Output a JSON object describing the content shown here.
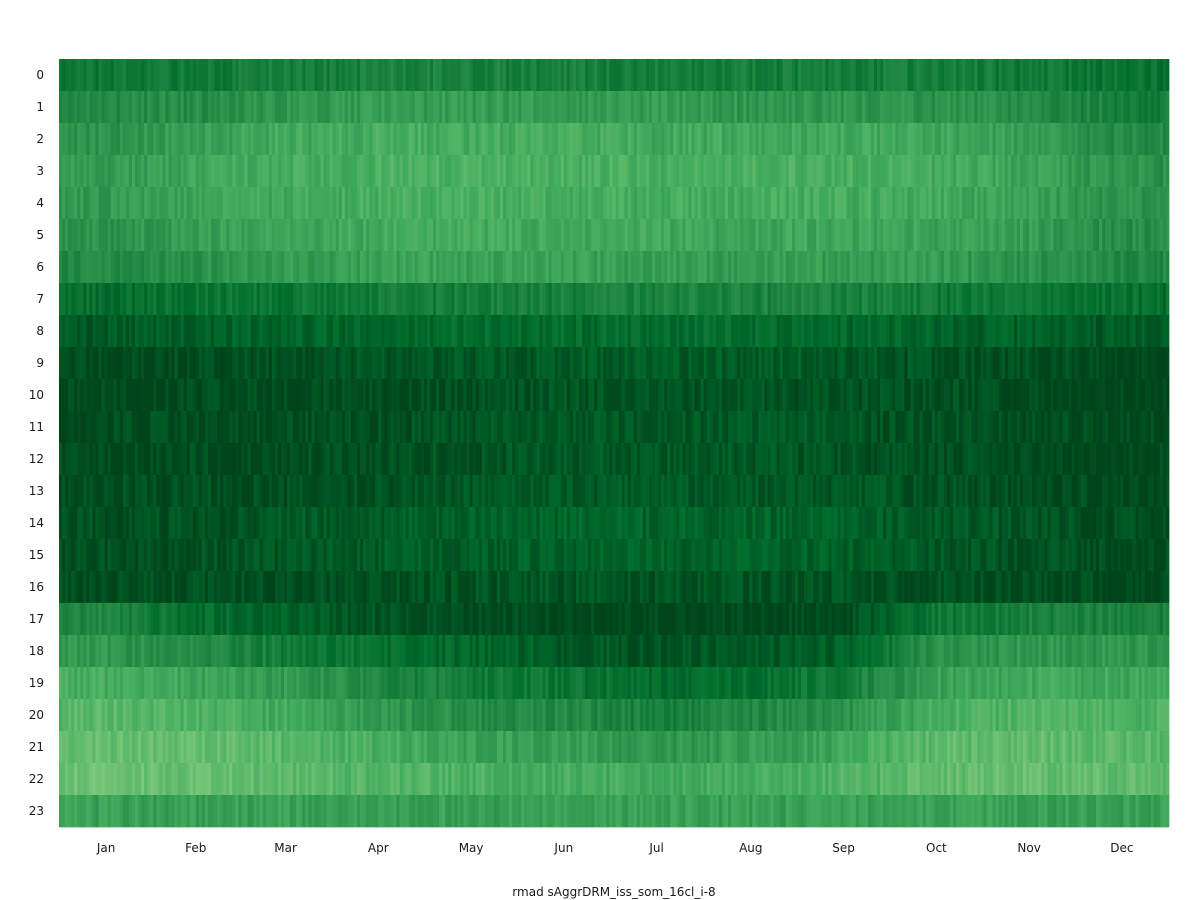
{
  "chart_data": {
    "type": "heatmap",
    "title": "",
    "xlabel": "rmad sAggrDRM_iss_som_16cl_i-8",
    "ylabel": "",
    "grid": false,
    "legend": "none",
    "colormap": "Greens",
    "color_light": "#c7e9c0",
    "color_dark": "#00441b",
    "x_unit": "day of year",
    "x_range": [
      1,
      365
    ],
    "months": [
      "Jan",
      "Feb",
      "Mar",
      "Apr",
      "May",
      "Jun",
      "Jul",
      "Aug",
      "Sep",
      "Oct",
      "Nov",
      "Dec"
    ],
    "hours": [
      "0",
      "1",
      "2",
      "3",
      "4",
      "5",
      "6",
      "7",
      "8",
      "9",
      "10",
      "11",
      "12",
      "13",
      "14",
      "15",
      "16",
      "17",
      "18",
      "19",
      "20",
      "21",
      "22",
      "23"
    ],
    "intensity_scale": [
      0,
      1
    ],
    "monthly_intensity": [
      [
        0.72,
        0.7,
        0.68,
        0.66,
        0.66,
        0.67,
        0.68,
        0.68,
        0.68,
        0.69,
        0.7,
        0.76
      ],
      [
        0.6,
        0.58,
        0.52,
        0.48,
        0.48,
        0.48,
        0.5,
        0.52,
        0.52,
        0.55,
        0.58,
        0.68
      ],
      [
        0.55,
        0.45,
        0.4,
        0.38,
        0.38,
        0.38,
        0.4,
        0.4,
        0.4,
        0.42,
        0.48,
        0.6
      ],
      [
        0.5,
        0.42,
        0.38,
        0.35,
        0.35,
        0.35,
        0.36,
        0.36,
        0.36,
        0.38,
        0.44,
        0.55
      ],
      [
        0.5,
        0.45,
        0.4,
        0.38,
        0.37,
        0.37,
        0.38,
        0.38,
        0.38,
        0.4,
        0.45,
        0.55
      ],
      [
        0.55,
        0.48,
        0.43,
        0.4,
        0.4,
        0.4,
        0.42,
        0.42,
        0.42,
        0.44,
        0.48,
        0.58
      ],
      [
        0.6,
        0.55,
        0.5,
        0.45,
        0.45,
        0.45,
        0.48,
        0.48,
        0.48,
        0.5,
        0.55,
        0.62
      ],
      [
        0.78,
        0.75,
        0.72,
        0.7,
        0.68,
        0.66,
        0.64,
        0.64,
        0.66,
        0.7,
        0.74,
        0.78
      ],
      [
        0.9,
        0.86,
        0.84,
        0.82,
        0.8,
        0.8,
        0.8,
        0.8,
        0.82,
        0.84,
        0.87,
        0.9
      ],
      [
        0.97,
        0.96,
        0.94,
        0.92,
        0.9,
        0.88,
        0.88,
        0.88,
        0.9,
        0.92,
        0.95,
        0.98
      ],
      [
        0.98,
        0.97,
        0.96,
        0.95,
        0.94,
        0.92,
        0.92,
        0.92,
        0.94,
        0.95,
        0.97,
        0.99
      ],
      [
        0.97,
        0.96,
        0.95,
        0.94,
        0.92,
        0.9,
        0.9,
        0.9,
        0.92,
        0.94,
        0.96,
        0.98
      ],
      [
        0.97,
        0.96,
        0.95,
        0.94,
        0.92,
        0.9,
        0.9,
        0.9,
        0.92,
        0.94,
        0.96,
        0.98
      ],
      [
        0.96,
        0.95,
        0.94,
        0.93,
        0.91,
        0.89,
        0.89,
        0.89,
        0.91,
        0.93,
        0.95,
        0.97
      ],
      [
        0.94,
        0.92,
        0.9,
        0.88,
        0.86,
        0.84,
        0.84,
        0.84,
        0.86,
        0.89,
        0.92,
        0.95
      ],
      [
        0.95,
        0.93,
        0.91,
        0.89,
        0.87,
        0.85,
        0.85,
        0.85,
        0.87,
        0.9,
        0.93,
        0.96
      ],
      [
        0.96,
        0.95,
        0.94,
        0.93,
        0.92,
        0.92,
        0.92,
        0.92,
        0.93,
        0.94,
        0.95,
        0.97
      ],
      [
        0.62,
        0.78,
        0.86,
        0.93,
        0.96,
        0.98,
        0.99,
        0.99,
        0.97,
        0.72,
        0.66,
        0.64
      ],
      [
        0.52,
        0.6,
        0.7,
        0.78,
        0.84,
        0.88,
        0.92,
        0.9,
        0.86,
        0.55,
        0.52,
        0.52
      ],
      [
        0.38,
        0.42,
        0.5,
        0.62,
        0.7,
        0.74,
        0.8,
        0.76,
        0.7,
        0.45,
        0.4,
        0.42
      ],
      [
        0.3,
        0.34,
        0.4,
        0.52,
        0.58,
        0.6,
        0.66,
        0.62,
        0.55,
        0.36,
        0.32,
        0.35
      ],
      [
        0.24,
        0.26,
        0.3,
        0.38,
        0.45,
        0.48,
        0.52,
        0.48,
        0.42,
        0.28,
        0.26,
        0.3
      ],
      [
        0.22,
        0.24,
        0.28,
        0.32,
        0.35,
        0.38,
        0.4,
        0.38,
        0.34,
        0.26,
        0.24,
        0.28
      ],
      [
        0.46,
        0.46,
        0.46,
        0.46,
        0.46,
        0.46,
        0.46,
        0.46,
        0.46,
        0.46,
        0.46,
        0.46
      ]
    ]
  }
}
